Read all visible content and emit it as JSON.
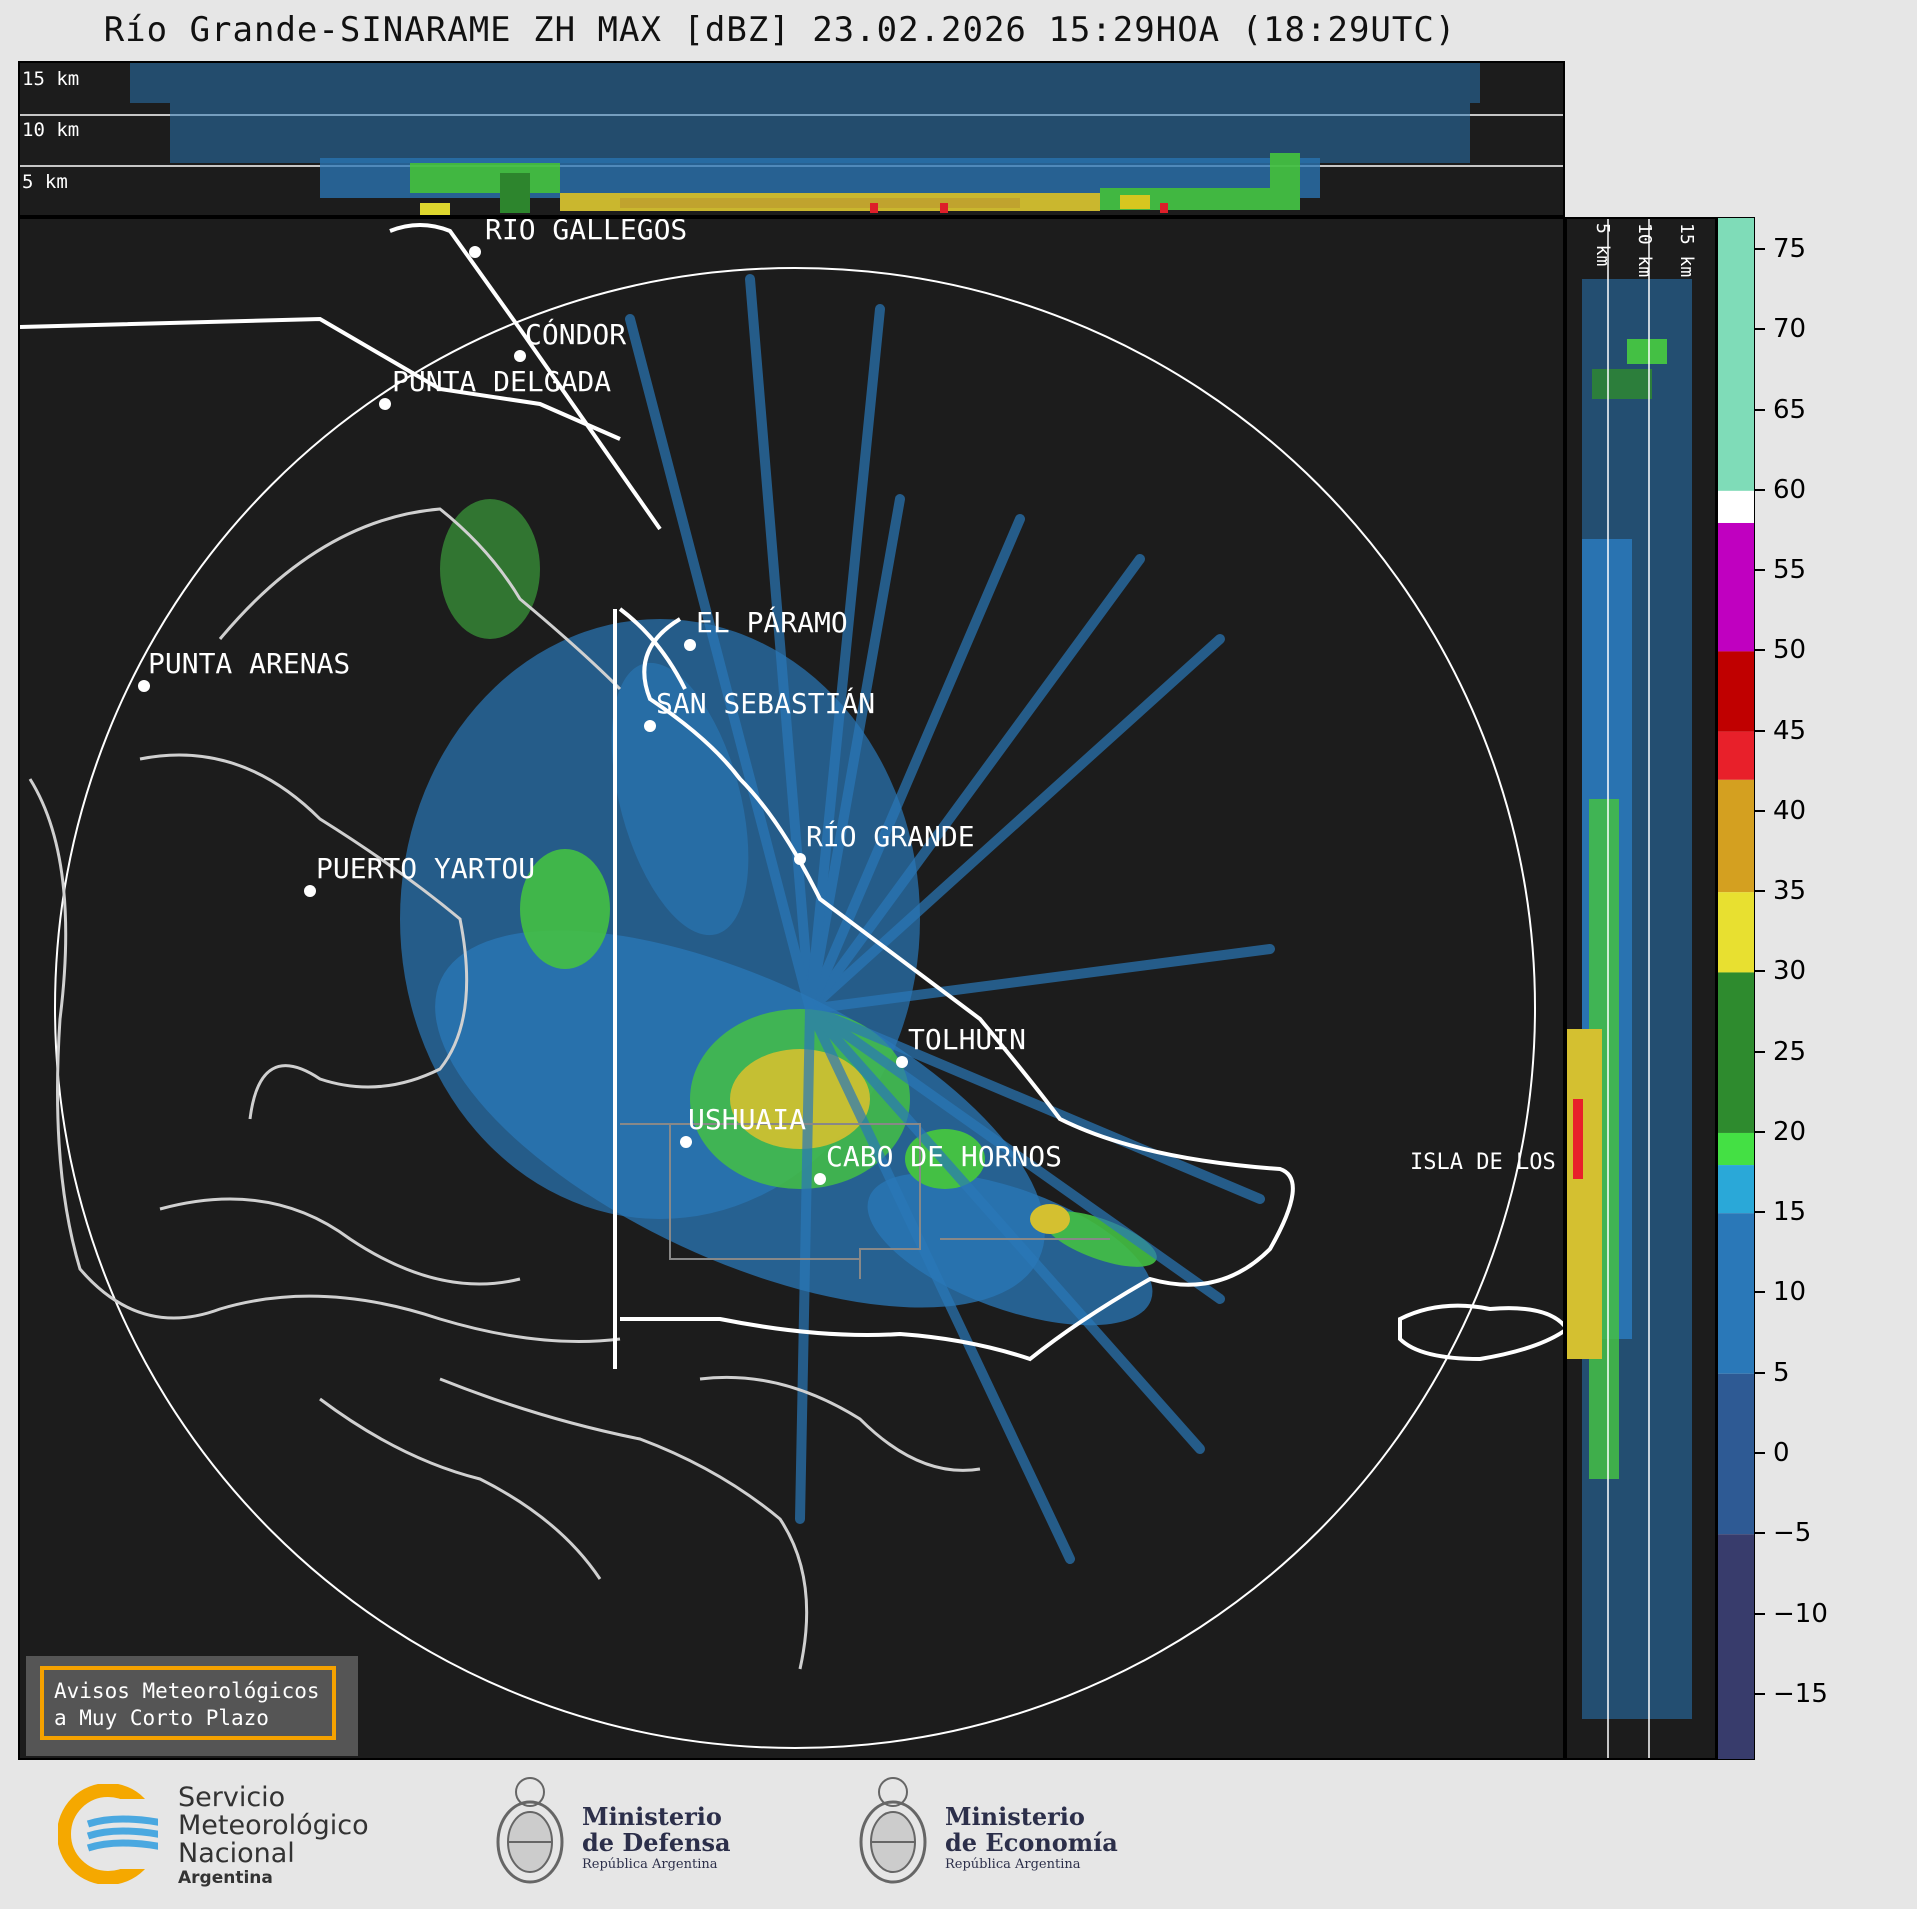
{
  "header": {
    "title": "Río Grande-SINARAME ZH MAX [dBZ] 23.02.2026 15:29HOA (18:29UTC)"
  },
  "top_profile": {
    "height_labels": [
      "15 km",
      "10 km",
      "5 km"
    ]
  },
  "side_profile": {
    "height_labels": [
      "5 km",
      "10 km",
      "15 km"
    ]
  },
  "map": {
    "places": [
      {
        "name": "RÍO GALLEGOS"
      },
      {
        "name": "CÓNDOR"
      },
      {
        "name": "PUNTA DELGADA"
      },
      {
        "name": "EL PÁRAMO"
      },
      {
        "name": "PUNTA ARENAS"
      },
      {
        "name": "SAN SEBASTIÁN"
      },
      {
        "name": "RÍO GRANDE"
      },
      {
        "name": "PUERTO YARTOU"
      },
      {
        "name": "TOLHUIN"
      },
      {
        "name": "USHUAIA"
      },
      {
        "name": "CABO DE HORNOS"
      },
      {
        "name": "ISLA DE LOS ESTADOS"
      }
    ]
  },
  "colorbar": {
    "unit": "dBZ",
    "ticks": [
      "75",
      "70",
      "65",
      "60",
      "55",
      "50",
      "45",
      "40",
      "35",
      "30",
      "25",
      "20",
      "15",
      "10",
      "5",
      "0",
      "−5",
      "−10",
      "−15"
    ],
    "tick_values": [
      75,
      70,
      65,
      60,
      55,
      50,
      45,
      40,
      35,
      30,
      25,
      20,
      15,
      10,
      5,
      0,
      -5,
      -10,
      -15
    ],
    "range": [
      -19,
      77
    ],
    "bands": [
      {
        "from": 60,
        "to": 77,
        "color": "#7fdcb8"
      },
      {
        "from": 58,
        "to": 60,
        "color": "#ffffff"
      },
      {
        "from": 50,
        "to": 58,
        "color": "#c000c0"
      },
      {
        "from": 45,
        "to": 50,
        "color": "#c00000"
      },
      {
        "from": 42,
        "to": 45,
        "color": "#e8202a"
      },
      {
        "from": 35,
        "to": 42,
        "color": "#d4a020"
      },
      {
        "from": 30,
        "to": 35,
        "color": "#e8e030"
      },
      {
        "from": 20,
        "to": 30,
        "color": "#2e8b2e"
      },
      {
        "from": 18,
        "to": 20,
        "color": "#44e044"
      },
      {
        "from": 15,
        "to": 18,
        "color": "#2aa8d8"
      },
      {
        "from": 5,
        "to": 15,
        "color": "#2a78b8"
      },
      {
        "from": -5,
        "to": 5,
        "color": "#2e5a94"
      },
      {
        "from": -19,
        "to": -5,
        "color": "#383c6c"
      }
    ]
  },
  "warning_box": {
    "line1": "Avisos Meteorológicos",
    "line2": "a Muy Corto Plazo"
  },
  "footer": {
    "smn_line1": "Servicio",
    "smn_line2": "Meteorológico",
    "smn_line3": "Nacional",
    "smn_line4": "Argentina",
    "defensa_line1": "Ministerio",
    "defensa_line2": "de Defensa",
    "defensa_line3": "República Argentina",
    "economia_line1": "Ministerio",
    "economia_line2": "de Economía",
    "economia_line3": "República Argentina"
  }
}
